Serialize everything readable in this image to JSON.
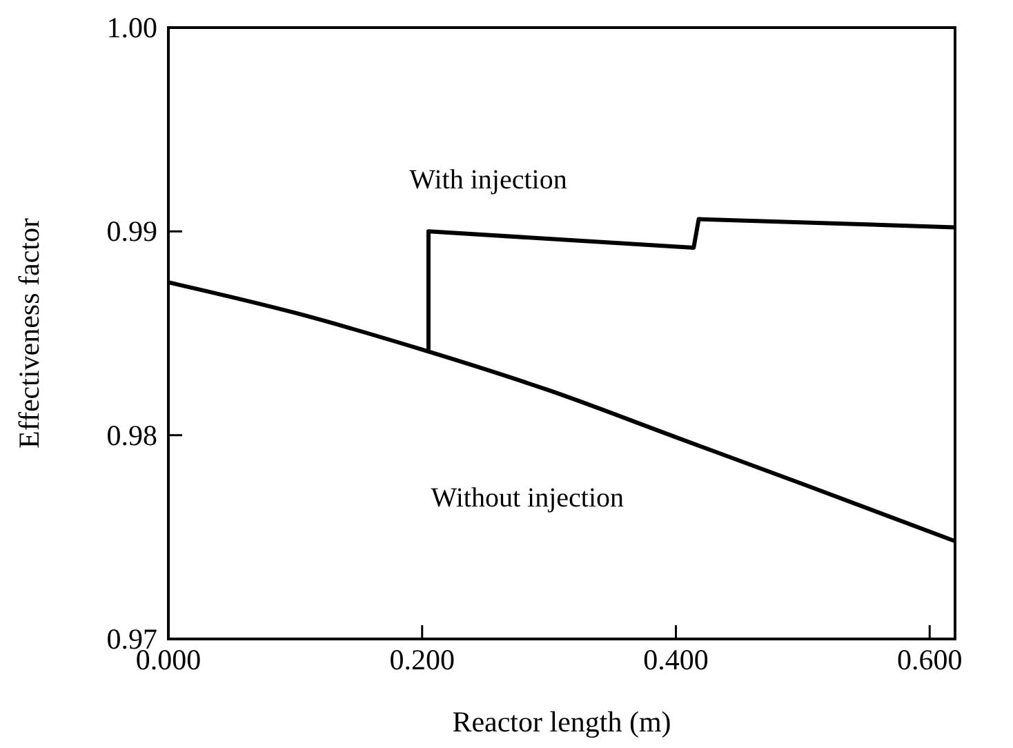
{
  "chart_data": {
    "type": "line",
    "xlabel": "Reactor length (m)",
    "ylabel": "Effectiveness factor",
    "xlim": [
      0,
      0.62
    ],
    "ylim": [
      0.97,
      1.0
    ],
    "xticks": [
      {
        "value": 0,
        "label": "0.000"
      },
      {
        "value": 0.2,
        "label": "0.200"
      },
      {
        "value": 0.4,
        "label": "0.400"
      },
      {
        "value": 0.6,
        "label": "0.600"
      }
    ],
    "yticks": [
      {
        "value": 0.97,
        "label": "0.97"
      },
      {
        "value": 0.98,
        "label": "0.98"
      },
      {
        "value": 0.99,
        "label": "0.99"
      },
      {
        "value": 1.0,
        "label": "1.00"
      }
    ],
    "series": [
      {
        "name": "Without injection",
        "color": "#000000",
        "x": [
          0,
          0.1,
          0.2,
          0.3,
          0.4,
          0.5,
          0.62
        ],
        "values": [
          0.9875,
          0.986,
          0.9842,
          0.9822,
          0.9799,
          0.9776,
          0.9748
        ]
      },
      {
        "name": "With injection",
        "color": "#000000",
        "x": [
          0.205,
          0.205,
          0.414,
          0.418,
          0.62
        ],
        "values": [
          0.9842,
          0.99,
          0.9892,
          0.9906,
          0.9902
        ]
      }
    ],
    "grid": false,
    "marker": "none",
    "line_style": "solid"
  }
}
